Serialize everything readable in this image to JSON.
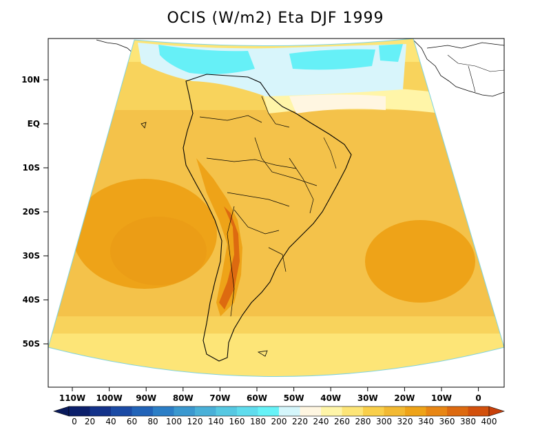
{
  "title": "OCIS (W/m2) Eta DJF 1999",
  "lat_labels": [
    "10N",
    "EQ",
    "10S",
    "20S",
    "30S",
    "40S",
    "50S"
  ],
  "lon_labels": [
    "110W",
    "100W",
    "90W",
    "80W",
    "70W",
    "60W",
    "50W",
    "40W",
    "30W",
    "20W",
    "10W",
    "0"
  ],
  "colorbar": {
    "labels": [
      "0",
      "20",
      "40",
      "60",
      "80",
      "100",
      "120",
      "140",
      "160",
      "180",
      "200",
      "220",
      "240",
      "260",
      "280",
      "300",
      "320",
      "340",
      "360",
      "380",
      "400"
    ],
    "colors": [
      "#0b1f6b",
      "#13328a",
      "#1a4aa5",
      "#2163b8",
      "#2b7ec6",
      "#3a98cf",
      "#49b0d8",
      "#56c8e2",
      "#5fdced",
      "#66f2f7",
      "#d4f6fb",
      "#fff6e1",
      "#fff5a8",
      "#fde577",
      "#f9cf4a",
      "#f2b932",
      "#eea318",
      "#e88614",
      "#dd6a10",
      "#d2500c"
    ],
    "under_color": "#091a5c",
    "over_color": "#c8400a"
  },
  "colors": {
    "ocean_base": "#f4c24a",
    "north_tropics": "#d8f5fb",
    "north_cyan": "#66f0f7",
    "subtropical_high": "#eea318",
    "andes_high": "#dd6a10",
    "coast": "#000000"
  }
}
